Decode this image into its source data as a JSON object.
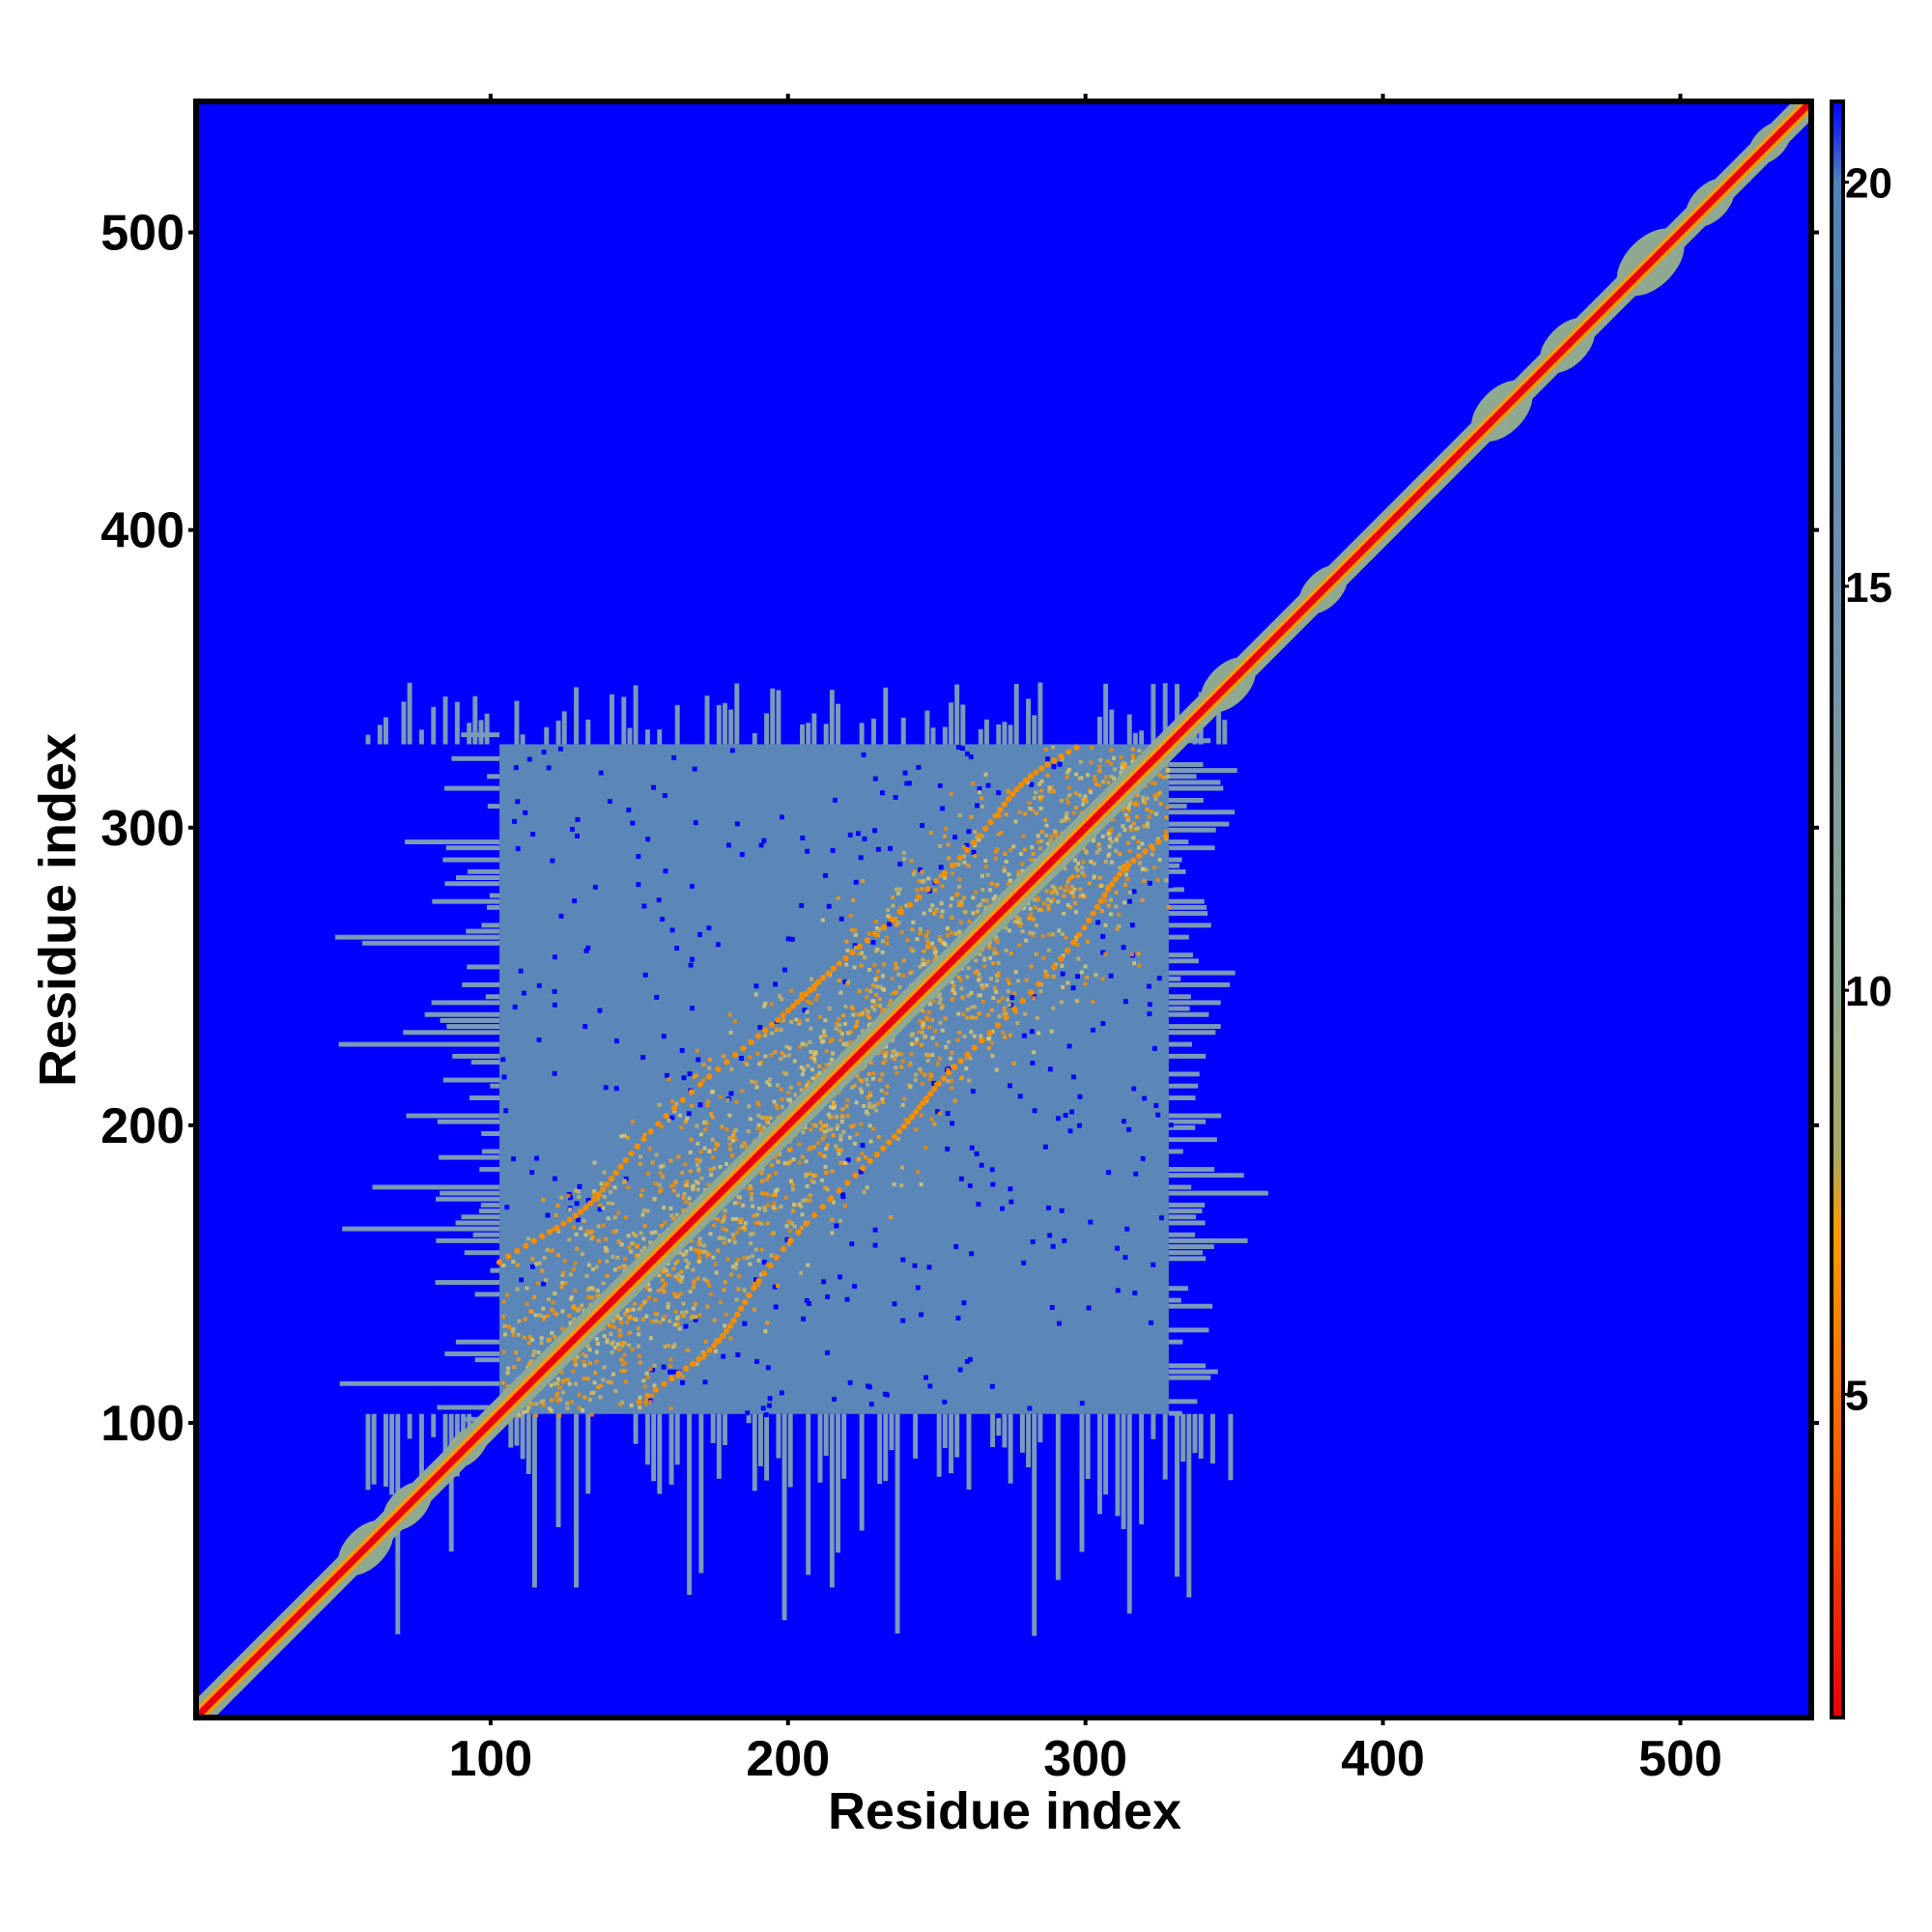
{
  "chart_data": {
    "type": "heatmap",
    "title": "",
    "xlabel": "Residue index",
    "ylabel": "Residue index",
    "xlim": [
      1,
      544
    ],
    "ylim": [
      1,
      544
    ],
    "x_ticks": [
      100,
      200,
      300,
      400,
      500
    ],
    "x_tick_labels": [
      "100",
      "200",
      "300",
      "400",
      "500"
    ],
    "y_ticks": [
      100,
      200,
      300,
      400,
      500
    ],
    "y_tick_labels": [
      "100",
      "200",
      "300",
      "400",
      "500"
    ],
    "colorbar": {
      "range": [
        1,
        21
      ],
      "ticks": [
        5,
        10,
        15,
        20
      ],
      "tick_labels": [
        "5",
        "10",
        "15",
        "20"
      ],
      "stops": [
        {
          "value": 1,
          "color": "#e8000b"
        },
        {
          "value": 4,
          "color": "#f25a00"
        },
        {
          "value": 7,
          "color": "#ff9900"
        },
        {
          "value": 8,
          "color": "#a8a864"
        },
        {
          "value": 10,
          "color": "#8fa890"
        },
        {
          "value": 15,
          "color": "#6f8fb0"
        },
        {
          "value": 20,
          "color": "#4f84b8"
        },
        {
          "value": 21,
          "color": "#0000ff"
        }
      ]
    },
    "grid": false,
    "features": {
      "background": {
        "value": 21,
        "color": "#0000ff"
      },
      "diagonal": {
        "from": 1,
        "to": 544,
        "value": 1,
        "color": "#e8000b"
      },
      "diagonal_band_half_width": 4,
      "diagonal_halo_color": "#8fa890",
      "structured_domain": {
        "residues": [
          103,
          328
        ],
        "mean_value": 19,
        "color": "#5b87b8",
        "fringe_color": "#7a9ab8",
        "contact_colors": [
          "#ff9900",
          "#f28c00",
          "#c8b45a",
          "#d9c86a"
        ],
        "secondary_contact_arcs": [
          {
            "from": [
              103,
              150
            ],
            "to": [
              300,
              330
            ]
          },
          {
            "from": [
              150,
              103
            ],
            "to": [
              330,
              300
            ]
          }
        ]
      },
      "diagonal_blobs": [
        {
          "center": 58,
          "size": 9
        },
        {
          "center": 72,
          "size": 8
        },
        {
          "center": 92,
          "size": 7
        },
        {
          "center": 348,
          "size": 9
        },
        {
          "center": 380,
          "size": 8
        },
        {
          "center": 440,
          "size": 10
        },
        {
          "center": 462,
          "size": 9
        },
        {
          "center": 490,
          "size": 11
        },
        {
          "center": 510,
          "size": 8
        },
        {
          "center": 530,
          "size": 7
        }
      ]
    }
  }
}
